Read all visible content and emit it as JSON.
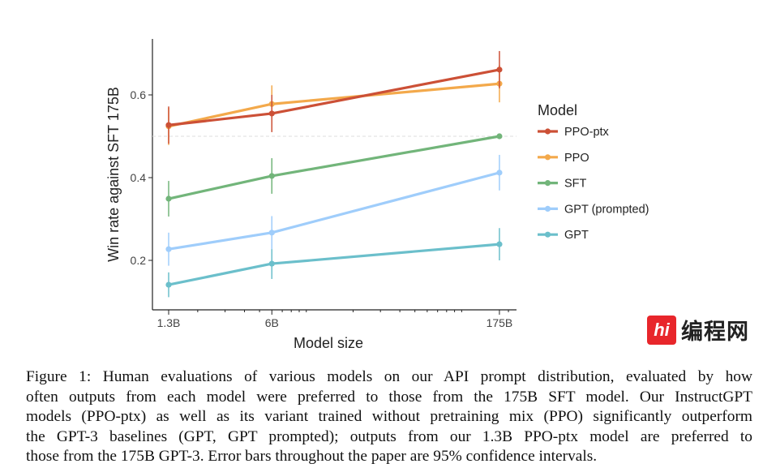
{
  "chart_data": {
    "type": "line",
    "title": "",
    "xlabel": "Model size",
    "ylabel": "Win rate against SFT 175B",
    "x_scale": "log",
    "x": [
      1.3,
      6,
      175
    ],
    "x_tick_labels": [
      "1.3B",
      "6B",
      "175B"
    ],
    "x_minor_ticks": [
      2,
      3,
      4,
      5,
      7,
      8,
      9,
      10,
      20,
      30,
      40,
      50,
      60,
      70,
      80,
      90,
      100,
      200
    ],
    "xlim": [
      1.05,
      215
    ],
    "y_ticks": [
      0.2,
      0.4,
      0.6
    ],
    "y_tick_labels": [
      "0.2",
      "0.4",
      "0.6"
    ],
    "ylim": [
      0.08,
      0.735
    ],
    "reference_line": 0.5,
    "legend_title": "Model",
    "legend_position": "right",
    "series": [
      {
        "name": "PPO-ptx",
        "color": "#cc5036",
        "values": [
          0.527,
          0.555,
          0.661
        ],
        "err": [
          0.045,
          0.045,
          0.045
        ]
      },
      {
        "name": "PPO",
        "color": "#f3a94b",
        "values": [
          0.524,
          0.578,
          0.627
        ],
        "err": [
          0.045,
          0.045,
          0.045
        ]
      },
      {
        "name": "SFT",
        "color": "#72b57a",
        "values": [
          0.349,
          0.404,
          0.5
        ],
        "err": [
          0.043,
          0.043,
          0
        ]
      },
      {
        "name": "GPT (prompted)",
        "color": "#9fcdfb",
        "values": [
          0.227,
          0.267,
          0.412
        ],
        "err": [
          0.04,
          0.04,
          0.043
        ]
      },
      {
        "name": "GPT",
        "color": "#6bbfcb",
        "values": [
          0.141,
          0.192,
          0.239
        ],
        "err": [
          0.03,
          0.037,
          0.039
        ]
      }
    ]
  },
  "caption": {
    "lines": [
      "Figure 1: Human evaluations of various models on our API prompt distribution, evaluated by how",
      "often outputs from each model were preferred to those from the 175B SFT model. Our InstructGPT",
      "models (PPO-ptx) as well as its variant trained without pretraining mix (PPO) significantly outperform",
      "the GPT-3 baselines (GPT, GPT prompted); outputs from our 1.3B PPO-ptx model are preferred to",
      "those from the 175B GPT-3. Error bars throughout the paper are 95% confidence intervals."
    ]
  },
  "watermark": {
    "mark": "hi",
    "text": "编程网"
  }
}
